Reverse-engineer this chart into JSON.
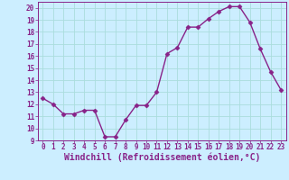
{
  "x": [
    0,
    1,
    2,
    3,
    4,
    5,
    6,
    7,
    8,
    9,
    10,
    11,
    12,
    13,
    14,
    15,
    16,
    17,
    18,
    19,
    20,
    21,
    22,
    23
  ],
  "y": [
    12.5,
    12.0,
    11.2,
    11.2,
    11.5,
    11.5,
    9.3,
    9.3,
    10.7,
    11.9,
    11.9,
    13.0,
    16.2,
    16.7,
    18.4,
    18.4,
    19.1,
    19.7,
    20.1,
    20.1,
    18.8,
    16.6,
    14.7,
    13.2
  ],
  "line_color": "#882288",
  "marker": "D",
  "marker_size": 2.5,
  "bg_color": "#cceeff",
  "grid_color": "#aadddd",
  "xlabel": "Windchill (Refroidissement éolien,°C)",
  "xlabel_color": "#882288",
  "xlim": [
    -0.5,
    23.5
  ],
  "ylim": [
    9,
    20.5
  ],
  "yticks": [
    9,
    10,
    11,
    12,
    13,
    14,
    15,
    16,
    17,
    18,
    19,
    20
  ],
  "xticks": [
    0,
    1,
    2,
    3,
    4,
    5,
    6,
    7,
    8,
    9,
    10,
    11,
    12,
    13,
    14,
    15,
    16,
    17,
    18,
    19,
    20,
    21,
    22,
    23
  ],
  "tick_color": "#882288",
  "tick_fontsize": 5.5,
  "xlabel_fontsize": 7.0,
  "linewidth": 1.0
}
